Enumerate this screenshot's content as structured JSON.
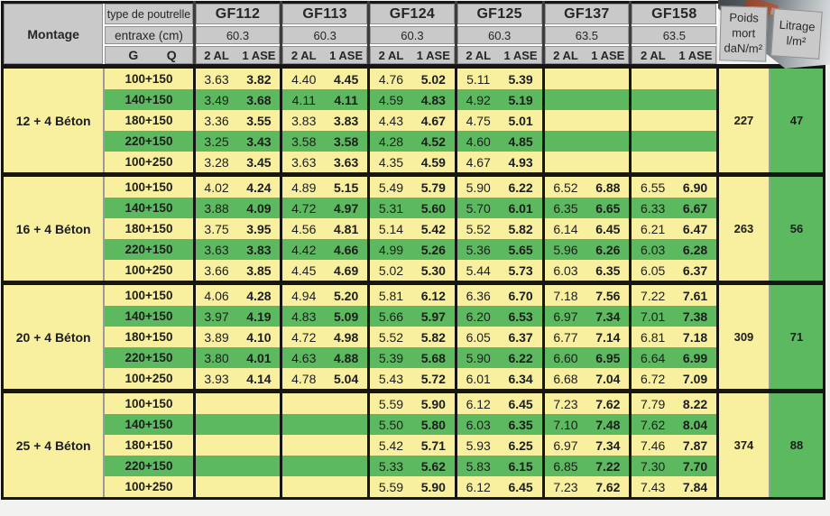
{
  "table": {
    "header": {
      "montage_label": "Montage",
      "type_label": "type de poutrelle",
      "entraxe_label": "entraxe (cm)",
      "g_label": "G",
      "q_label": "Q",
      "columns": [
        {
          "name": "GF112",
          "entraxe": "60.3",
          "sub_left": "2 AL",
          "sub_right": "1 ASE"
        },
        {
          "name": "GF113",
          "entraxe": "60.3",
          "sub_left": "2 AL",
          "sub_right": "1 ASE"
        },
        {
          "name": "GF124",
          "entraxe": "60.3",
          "sub_left": "2 AL",
          "sub_right": "1 ASE"
        },
        {
          "name": "GF125",
          "entraxe": "60.3",
          "sub_left": "2 AL",
          "sub_right": "1 ASE"
        },
        {
          "name": "GF137",
          "entraxe": "63.5",
          "sub_left": "2 AL",
          "sub_right": "1 ASE"
        },
        {
          "name": "GF158",
          "entraxe": "63.5",
          "sub_left": "2 AL",
          "sub_right": "1 ASE"
        }
      ],
      "poids_lines": [
        "Poids",
        "mort",
        "daN/m²"
      ],
      "litrage_lines": [
        "Litrage",
        "l/m²"
      ]
    },
    "groups": [
      {
        "montage": "12 + 4 Béton",
        "poids_mort": "227",
        "litrage": "47",
        "rows": [
          {
            "label": "100+150",
            "values": [
              [
                "3.63",
                "3.82"
              ],
              [
                "4.40",
                "4.45"
              ],
              [
                "4.76",
                "5.02"
              ],
              [
                "5.11",
                "5.39"
              ],
              [
                "",
                ""
              ],
              [
                "",
                ""
              ]
            ]
          },
          {
            "label": "140+150",
            "values": [
              [
                "3.49",
                "3.68"
              ],
              [
                "4.11",
                "4.11"
              ],
              [
                "4.59",
                "4.83"
              ],
              [
                "4.92",
                "5.19"
              ],
              [
                "",
                ""
              ],
              [
                "",
                ""
              ]
            ]
          },
          {
            "label": "180+150",
            "values": [
              [
                "3.36",
                "3.55"
              ],
              [
                "3.83",
                "3.83"
              ],
              [
                "4.43",
                "4.67"
              ],
              [
                "4.75",
                "5.01"
              ],
              [
                "",
                ""
              ],
              [
                "",
                ""
              ]
            ]
          },
          {
            "label": "220+150",
            "values": [
              [
                "3.25",
                "3.43"
              ],
              [
                "3.58",
                "3.58"
              ],
              [
                "4.28",
                "4.52"
              ],
              [
                "4.60",
                "4.85"
              ],
              [
                "",
                ""
              ],
              [
                "",
                ""
              ]
            ]
          },
          {
            "label": "100+250",
            "values": [
              [
                "3.28",
                "3.45"
              ],
              [
                "3.63",
                "3.63"
              ],
              [
                "4.35",
                "4.59"
              ],
              [
                "4.67",
                "4.93"
              ],
              [
                "",
                ""
              ],
              [
                "",
                ""
              ]
            ]
          }
        ]
      },
      {
        "montage": "16 + 4 Béton",
        "poids_mort": "263",
        "litrage": "56",
        "rows": [
          {
            "label": "100+150",
            "values": [
              [
                "4.02",
                "4.24"
              ],
              [
                "4.89",
                "5.15"
              ],
              [
                "5.49",
                "5.79"
              ],
              [
                "5.90",
                "6.22"
              ],
              [
                "6.52",
                "6.88"
              ],
              [
                "6.55",
                "6.90"
              ]
            ]
          },
          {
            "label": "140+150",
            "values": [
              [
                "3.88",
                "4.09"
              ],
              [
                "4.72",
                "4.97"
              ],
              [
                "5.31",
                "5.60"
              ],
              [
                "5.70",
                "6.01"
              ],
              [
                "6.35",
                "6.65"
              ],
              [
                "6.33",
                "6.67"
              ]
            ]
          },
          {
            "label": "180+150",
            "values": [
              [
                "3.75",
                "3.95"
              ],
              [
                "4.56",
                "4.81"
              ],
              [
                "5.14",
                "5.42"
              ],
              [
                "5.52",
                "5.82"
              ],
              [
                "6.14",
                "6.45"
              ],
              [
                "6.21",
                "6.47"
              ]
            ]
          },
          {
            "label": "220+150",
            "values": [
              [
                "3.63",
                "3.83"
              ],
              [
                "4.42",
                "4.66"
              ],
              [
                "4.99",
                "5.26"
              ],
              [
                "5.36",
                "5.65"
              ],
              [
                "5.96",
                "6.26"
              ],
              [
                "6.03",
                "6.28"
              ]
            ]
          },
          {
            "label": "100+250",
            "values": [
              [
                "3.66",
                "3.85"
              ],
              [
                "4.45",
                "4.69"
              ],
              [
                "5.02",
                "5.30"
              ],
              [
                "5.44",
                "5.73"
              ],
              [
                "6.03",
                "6.35"
              ],
              [
                "6.05",
                "6.37"
              ]
            ]
          }
        ]
      },
      {
        "montage": "20 + 4 Béton",
        "poids_mort": "309",
        "litrage": "71",
        "rows": [
          {
            "label": "100+150",
            "values": [
              [
                "4.06",
                "4.28"
              ],
              [
                "4.94",
                "5.20"
              ],
              [
                "5.81",
                "6.12"
              ],
              [
                "6.36",
                "6.70"
              ],
              [
                "7.18",
                "7.56"
              ],
              [
                "7.22",
                "7.61"
              ]
            ]
          },
          {
            "label": "140+150",
            "values": [
              [
                "3.97",
                "4.19"
              ],
              [
                "4.83",
                "5.09"
              ],
              [
                "5.66",
                "5.97"
              ],
              [
                "6.20",
                "6.53"
              ],
              [
                "6.97",
                "7.34"
              ],
              [
                "7.01",
                "7.38"
              ]
            ]
          },
          {
            "label": "180+150",
            "values": [
              [
                "3.89",
                "4.10"
              ],
              [
                "4.72",
                "4.98"
              ],
              [
                "5.52",
                "5.82"
              ],
              [
                "6.05",
                "6.37"
              ],
              [
                "6.77",
                "7.14"
              ],
              [
                "6.81",
                "7.18"
              ]
            ]
          },
          {
            "label": "220+150",
            "values": [
              [
                "3.80",
                "4.01"
              ],
              [
                "4.63",
                "4.88"
              ],
              [
                "5.39",
                "5.68"
              ],
              [
                "5.90",
                "6.22"
              ],
              [
                "6.60",
                "6.95"
              ],
              [
                "6.64",
                "6.99"
              ]
            ]
          },
          {
            "label": "100+250",
            "values": [
              [
                "3.93",
                "4.14"
              ],
              [
                "4.78",
                "5.04"
              ],
              [
                "5.43",
                "5.72"
              ],
              [
                "6.01",
                "6.34"
              ],
              [
                "6.68",
                "7.04"
              ],
              [
                "6.72",
                "7.09"
              ]
            ]
          }
        ]
      },
      {
        "montage": "25 + 4 Béton",
        "poids_mort": "374",
        "litrage": "88",
        "rows": [
          {
            "label": "100+150",
            "values": [
              [
                "",
                ""
              ],
              [
                "",
                ""
              ],
              [
                "5.59",
                "5.90"
              ],
              [
                "6.12",
                "6.45"
              ],
              [
                "7.23",
                "7.62"
              ],
              [
                "7.79",
                "8.22"
              ]
            ]
          },
          {
            "label": "140+150",
            "values": [
              [
                "",
                ""
              ],
              [
                "",
                ""
              ],
              [
                "5.50",
                "5.80"
              ],
              [
                "6.03",
                "6.35"
              ],
              [
                "7.10",
                "7.48"
              ],
              [
                "7.62",
                "8.04"
              ]
            ]
          },
          {
            "label": "180+150",
            "values": [
              [
                "",
                ""
              ],
              [
                "",
                ""
              ],
              [
                "5.42",
                "5.71"
              ],
              [
                "5.93",
                "6.25"
              ],
              [
                "6.97",
                "7.34"
              ],
              [
                "7.46",
                "7.87"
              ]
            ]
          },
          {
            "label": "220+150",
            "values": [
              [
                "",
                ""
              ],
              [
                "",
                ""
              ],
              [
                "5.33",
                "5.62"
              ],
              [
                "5.83",
                "6.15"
              ],
              [
                "6.85",
                "7.22"
              ],
              [
                "7.30",
                "7.70"
              ]
            ]
          },
          {
            "label": "100+250",
            "values": [
              [
                "",
                ""
              ],
              [
                "",
                ""
              ],
              [
                "5.59",
                "5.90"
              ],
              [
                "6.12",
                "6.45"
              ],
              [
                "7.23",
                "7.62"
              ],
              [
                "7.43",
                "7.84"
              ]
            ]
          }
        ]
      }
    ],
    "colors": {
      "row_yellow": "#f8f09e",
      "row_green": "#5db960",
      "header_grey": "#c9c9c9",
      "border_black": "#161616",
      "divider_grey": "#9b9b9b"
    }
  }
}
